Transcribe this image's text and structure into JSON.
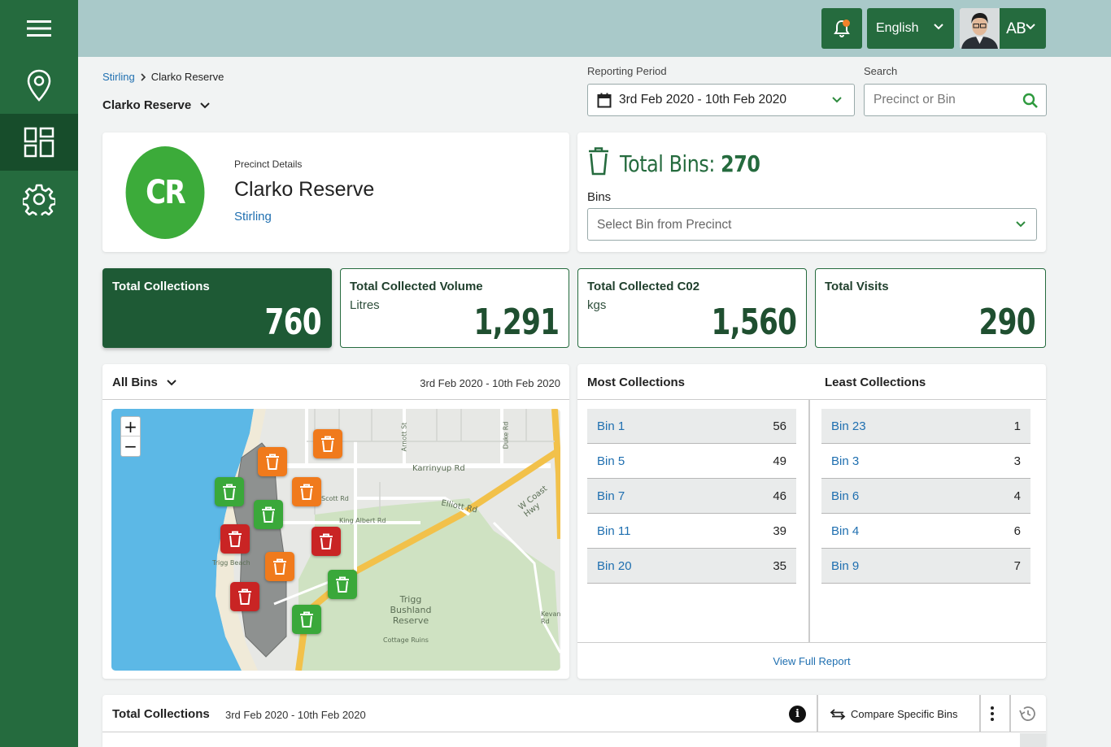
{
  "sidebar": {
    "items": [
      {
        "icon": "menu-icon"
      },
      {
        "icon": "location-pin-icon"
      },
      {
        "icon": "dashboard-icon",
        "active": true
      },
      {
        "icon": "gear-icon"
      }
    ]
  },
  "topbar": {
    "language": "English",
    "user_initials": "AB",
    "notification_dot_color": "#f2822a"
  },
  "breadcrumb": {
    "parent": "Stirling",
    "current": "Clarko Reserve"
  },
  "page_title": "Clarko Reserve",
  "filters": {
    "period_label": "Reporting Period",
    "period_value": "3rd Feb 2020 - 10th Feb 2020",
    "search_label": "Search",
    "search_placeholder": "Precinct or Bin"
  },
  "precinct": {
    "initials": "CR",
    "label": "Precinct Details",
    "name": "Clarko Reserve",
    "parent": "Stirling"
  },
  "bins": {
    "total_label": "Total Bins:",
    "total_value": "270",
    "select_label": "Bins",
    "select_placeholder": "Select Bin from Precinct"
  },
  "stats": [
    {
      "title": "Total Collections",
      "unit": "",
      "value": "760"
    },
    {
      "title": "Total Collected Volume",
      "unit": "Litres",
      "value": "1,291"
    },
    {
      "title": "Total Collected C02",
      "unit": "kgs",
      "value": "1,560"
    },
    {
      "title": "Total Visits",
      "unit": "",
      "value": "290"
    }
  ],
  "map_panel": {
    "title": "All Bins",
    "date": "3rd Feb 2020 - 10th Feb 2020",
    "zoom_in": "+",
    "zoom_out": "−",
    "labels": {
      "reserve": "Trigg Bushland Reserve",
      "road1": "Karrinyup Rd",
      "road2": "W Coast Hwy",
      "road3": "Elliott Rd",
      "road4": "King Albert Rd",
      "road5": "Scott Rd",
      "ruins": "Cottage Ruins",
      "beach": "Trigg Beach",
      "arnott": "Arnott St",
      "duke": "Duke Rd",
      "kevan": "Kevan Rd"
    },
    "colors": {
      "orange": "#f07a1c",
      "green": "#3aa83a",
      "red": "#c92424",
      "water": "#5cb8e6"
    }
  },
  "collections": {
    "most_title": "Most Collections",
    "least_title": "Least Collections",
    "most": [
      {
        "name": "Bin 1",
        "value": "56"
      },
      {
        "name": "Bin 5",
        "value": "49"
      },
      {
        "name": "Bin 7",
        "value": "46"
      },
      {
        "name": "Bin 11",
        "value": "39"
      },
      {
        "name": "Bin 20",
        "value": "35"
      }
    ],
    "least": [
      {
        "name": "Bin 23",
        "value": "1"
      },
      {
        "name": "Bin 3",
        "value": "3"
      },
      {
        "name": "Bin 6",
        "value": "4"
      },
      {
        "name": "Bin 4",
        "value": "6"
      },
      {
        "name": "Bin 9",
        "value": "7"
      }
    ],
    "footer_link": "View Full Report"
  },
  "bottom": {
    "title": "Total Collections",
    "date": "3rd Feb 2020 - 10th Feb 2020",
    "info": "i",
    "compare_label": "Compare Specific Bins"
  }
}
